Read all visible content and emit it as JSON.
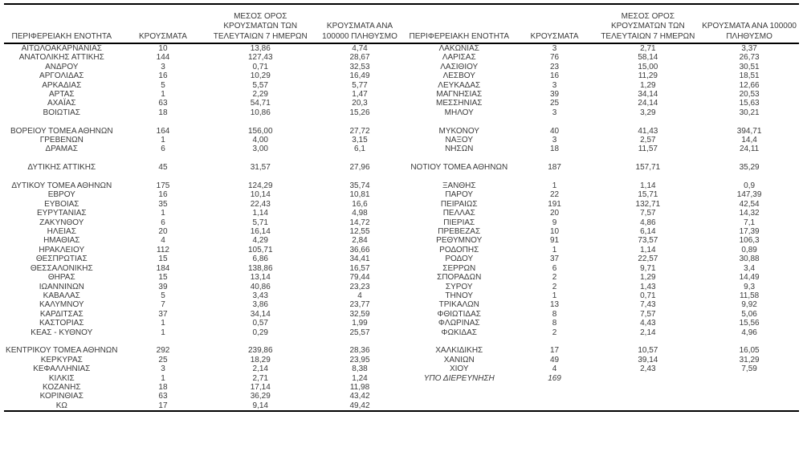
{
  "colors": {
    "background": "#ffffff",
    "text": "#3a3a3a",
    "border": "#000000"
  },
  "report_table": {
    "columns": [
      "ΠΕΡΙΦΕΡΕΙΑΚΗ ΕΝΟΤΗΤΑ",
      "ΚΡΟΥΣΜΑΤΑ",
      "ΜΕΣΟΣ ΟΡΟΣ ΚΡΟΥΣΜΑΤΩΝ ΤΩΝ ΤΕΛΕΥΤΑΙΩΝ 7 ΗΜΕΡΩΝ",
      "ΚΡΟΥΣΜΑΤΑ ΑΝΑ 100000 ΠΛΗΘΥΣΜΟ"
    ],
    "italic_rows": {
      "left": [],
      "right": [
        36
      ]
    },
    "left_rows": [
      [
        "ΑΙΤΩΛΟΑΚΑΡΝΑΝΙΑΣ",
        "10",
        "13,86",
        "4,74"
      ],
      [
        "ΑΝΑΤΟΛΙΚΗΣ ΑΤΤΙΚΗΣ",
        "144",
        "127,43",
        "28,67"
      ],
      [
        "ΑΝΔΡΟΥ",
        "3",
        "0,71",
        "32,53"
      ],
      [
        "ΑΡΓΟΛΙΔΑΣ",
        "16",
        "10,29",
        "16,49"
      ],
      [
        "ΑΡΚΑΔΙΑΣ",
        "5",
        "5,57",
        "5,77"
      ],
      [
        "ΑΡΤΑΣ",
        "1",
        "2,29",
        "1,47"
      ],
      [
        "ΑΧΑΪΑΣ",
        "63",
        "54,71",
        "20,3"
      ],
      [
        "ΒΟΙΩΤΙΑΣ",
        "18",
        "10,86",
        "15,26"
      ],
      [
        "",
        "",
        "",
        ""
      ],
      [
        "ΒΟΡΕΙΟΥ ΤΟΜΕΑ ΑΘΗΝΩΝ",
        "164",
        "156,00",
        "27,72"
      ],
      [
        "ΓΡΕΒΕΝΩΝ",
        "1",
        "4,00",
        "3,15"
      ],
      [
        "ΔΡΑΜΑΣ",
        "6",
        "3,00",
        "6,1"
      ],
      [
        "",
        "",
        "",
        ""
      ],
      [
        "ΔΥΤΙΚΗΣ ΑΤΤΙΚΗΣ",
        "45",
        "31,57",
        "27,96"
      ],
      [
        "",
        "",
        "",
        ""
      ],
      [
        "ΔΥΤΙΚΟΥ ΤΟΜΕΑ ΑΘΗΝΩΝ",
        "175",
        "124,29",
        "35,74"
      ],
      [
        "ΕΒΡΟΥ",
        "16",
        "10,14",
        "10,81"
      ],
      [
        "ΕΥΒΟΙΑΣ",
        "35",
        "22,43",
        "16,6"
      ],
      [
        "ΕΥΡΥΤΑΝΙΑΣ",
        "1",
        "1,14",
        "4,98"
      ],
      [
        "ΖΑΚΥΝΘΟΥ",
        "6",
        "5,71",
        "14,72"
      ],
      [
        "ΗΛΕΙΑΣ",
        "20",
        "16,14",
        "12,55"
      ],
      [
        "ΗΜΑΘΙΑΣ",
        "4",
        "4,29",
        "2,84"
      ],
      [
        "ΗΡΑΚΛΕΙΟΥ",
        "112",
        "105,71",
        "36,66"
      ],
      [
        "ΘΕΣΠΡΩΤΙΑΣ",
        "15",
        "6,86",
        "34,41"
      ],
      [
        "ΘΕΣΣΑΛΟΝΙΚΗΣ",
        "184",
        "138,86",
        "16,57"
      ],
      [
        "ΘΗΡΑΣ",
        "15",
        "13,14",
        "79,44"
      ],
      [
        "ΙΩΑΝΝΙΝΩΝ",
        "39",
        "40,86",
        "23,23"
      ],
      [
        "ΚΑΒΑΛΑΣ",
        "5",
        "3,43",
        "4"
      ],
      [
        "ΚΑΛΥΜΝΟΥ",
        "7",
        "3,86",
        "23,77"
      ],
      [
        "ΚΑΡΔΙΤΣΑΣ",
        "37",
        "34,14",
        "32,59"
      ],
      [
        "ΚΑΣΤΟΡΙΑΣ",
        "1",
        "0,57",
        "1,99"
      ],
      [
        "ΚΕΑΣ - ΚΥΘΝΟΥ",
        "1",
        "0,29",
        "25,57"
      ],
      [
        "",
        "",
        "",
        ""
      ],
      [
        "ΚΕΝΤΡΙΚΟΥ ΤΟΜΕΑ ΑΘΗΝΩΝ",
        "292",
        "239,86",
        "28,36"
      ],
      [
        "ΚΕΡΚΥΡΑΣ",
        "25",
        "18,29",
        "23,95"
      ],
      [
        "ΚΕΦΑΛΛΗΝΙΑΣ",
        "3",
        "2,14",
        "8,38"
      ],
      [
        "ΚΙΛΚΙΣ",
        "1",
        "2,71",
        "1,24"
      ],
      [
        "ΚΟΖΑΝΗΣ",
        "18",
        "17,14",
        "11,98"
      ],
      [
        "ΚΟΡΙΝΘΙΑΣ",
        "63",
        "36,29",
        "43,42"
      ],
      [
        "ΚΩ",
        "17",
        "9,14",
        "49,42"
      ]
    ],
    "right_rows": [
      [
        "ΛΑΚΩΝΙΑΣ",
        "3",
        "2,71",
        "3,37"
      ],
      [
        "ΛΑΡΙΣΑΣ",
        "76",
        "58,14",
        "26,73"
      ],
      [
        "ΛΑΣΙΘΙΟΥ",
        "23",
        "15,00",
        "30,51"
      ],
      [
        "ΛΕΣΒΟΥ",
        "16",
        "11,29",
        "18,51"
      ],
      [
        "ΛΕΥΚΑΔΑΣ",
        "3",
        "1,29",
        "12,66"
      ],
      [
        "ΜΑΓΝΗΣΙΑΣ",
        "39",
        "34,14",
        "20,53"
      ],
      [
        "ΜΕΣΣΗΝΙΑΣ",
        "25",
        "24,14",
        "15,63"
      ],
      [
        "ΜΗΛΟΥ",
        "3",
        "3,29",
        "30,21"
      ],
      [
        "",
        "",
        "",
        ""
      ],
      [
        "ΜΥΚΟΝΟΥ",
        "40",
        "41,43",
        "394,71"
      ],
      [
        "ΝΑΞΟΥ",
        "3",
        "2,57",
        "14,4"
      ],
      [
        "ΝΗΣΩΝ",
        "18",
        "11,57",
        "24,11"
      ],
      [
        "",
        "",
        "",
        ""
      ],
      [
        "ΝΟΤΙΟΥ ΤΟΜΕΑ ΑΘΗΝΩΝ",
        "187",
        "157,71",
        "35,29"
      ],
      [
        "",
        "",
        "",
        ""
      ],
      [
        "ΞΑΝΘΗΣ",
        "1",
        "1,14",
        "0,9"
      ],
      [
        "ΠΑΡΟΥ",
        "22",
        "15,71",
        "147,39"
      ],
      [
        "ΠΕΙΡΑΙΩΣ",
        "191",
        "132,71",
        "42,54"
      ],
      [
        "ΠΕΛΛΑΣ",
        "20",
        "7,57",
        "14,32"
      ],
      [
        "ΠΙΕΡΙΑΣ",
        "9",
        "4,86",
        "7,1"
      ],
      [
        "ΠΡΕΒΕΖΑΣ",
        "10",
        "6,14",
        "17,39"
      ],
      [
        "ΡΕΘΥΜΝΟΥ",
        "91",
        "73,57",
        "106,3"
      ],
      [
        "ΡΟΔΟΠΗΣ",
        "1",
        "1,14",
        "0,89"
      ],
      [
        "ΡΟΔΟΥ",
        "37",
        "22,57",
        "30,88"
      ],
      [
        "ΣΕΡΡΩΝ",
        "6",
        "9,71",
        "3,4"
      ],
      [
        "ΣΠΟΡΑΔΩΝ",
        "2",
        "1,29",
        "14,49"
      ],
      [
        "ΣΥΡΟΥ",
        "2",
        "1,43",
        "9,3"
      ],
      [
        "ΤΗΝΟΥ",
        "1",
        "0,71",
        "11,58"
      ],
      [
        "ΤΡΙΚΑΛΩΝ",
        "13",
        "7,43",
        "9,92"
      ],
      [
        "ΦΘΙΩΤΙΔΑΣ",
        "8",
        "7,57",
        "5,06"
      ],
      [
        "ΦΛΩΡΙΝΑΣ",
        "8",
        "4,43",
        "15,56"
      ],
      [
        "ΦΩΚΙΔΑΣ",
        "2",
        "2,14",
        "4,96"
      ],
      [
        "",
        "",
        "",
        ""
      ],
      [
        "ΧΑΛΚΙΔΙΚΗΣ",
        "17",
        "10,57",
        "16,05"
      ],
      [
        "ΧΑΝΙΩΝ",
        "49",
        "39,14",
        "31,29"
      ],
      [
        "ΧΙΟΥ",
        "4",
        "2,43",
        "7,59"
      ],
      [
        "ΥΠΟ ΔΙΕΡΕΥΝΗΣΗ",
        "169",
        "",
        ""
      ],
      [
        "",
        "",
        "",
        ""
      ],
      [
        "",
        "",
        "",
        ""
      ],
      [
        "",
        "",
        "",
        ""
      ]
    ]
  }
}
